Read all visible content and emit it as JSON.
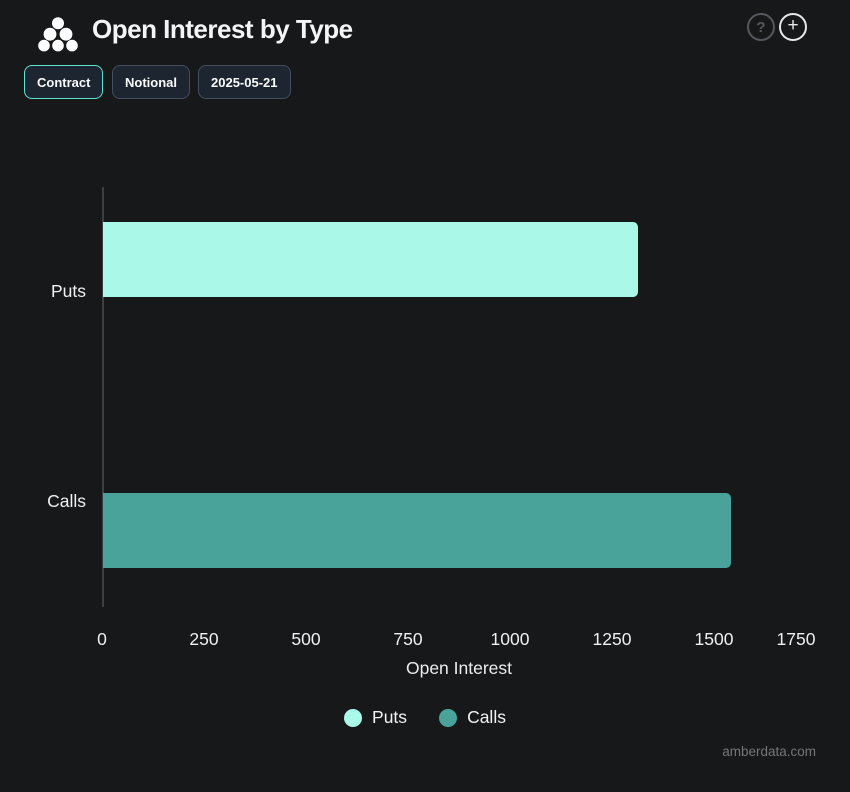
{
  "header": {
    "title": "Open Interest by Type",
    "logo_icon": "amberdata-dots-logo",
    "help_glyph": "?",
    "add_glyph": "+"
  },
  "toolbar": {
    "buttons": [
      {
        "label": "Contract",
        "active": true
      },
      {
        "label": "Notional",
        "active": false
      },
      {
        "label": "2025-05-21",
        "active": false
      }
    ]
  },
  "chart_data": {
    "type": "bar",
    "orientation": "horizontal",
    "title": "Open Interest by Type",
    "categories": [
      "Puts",
      "Calls"
    ],
    "series": [
      {
        "name": "Puts",
        "value": 1310,
        "color": "#a9f8e8"
      },
      {
        "name": "Calls",
        "value": 1540,
        "color": "#49a39a"
      }
    ],
    "xlabel": "Open Interest",
    "ylabel": "",
    "xlim": [
      0,
      1750
    ],
    "xticks": [
      0,
      250,
      500,
      750,
      1000,
      1250,
      1500,
      1750
    ],
    "grid": false,
    "legend_position": "bottom",
    "legend": [
      {
        "label": "Puts",
        "color": "#a9f8e8"
      },
      {
        "label": "Calls",
        "color": "#49a39a"
      }
    ]
  },
  "watermark": "amberdata.com",
  "colors": {
    "background": "#17181a",
    "accent_mint": "#5ee3cf",
    "puts": "#a9f8e8",
    "calls": "#49a39a",
    "axis_line": "#3d3f44"
  }
}
